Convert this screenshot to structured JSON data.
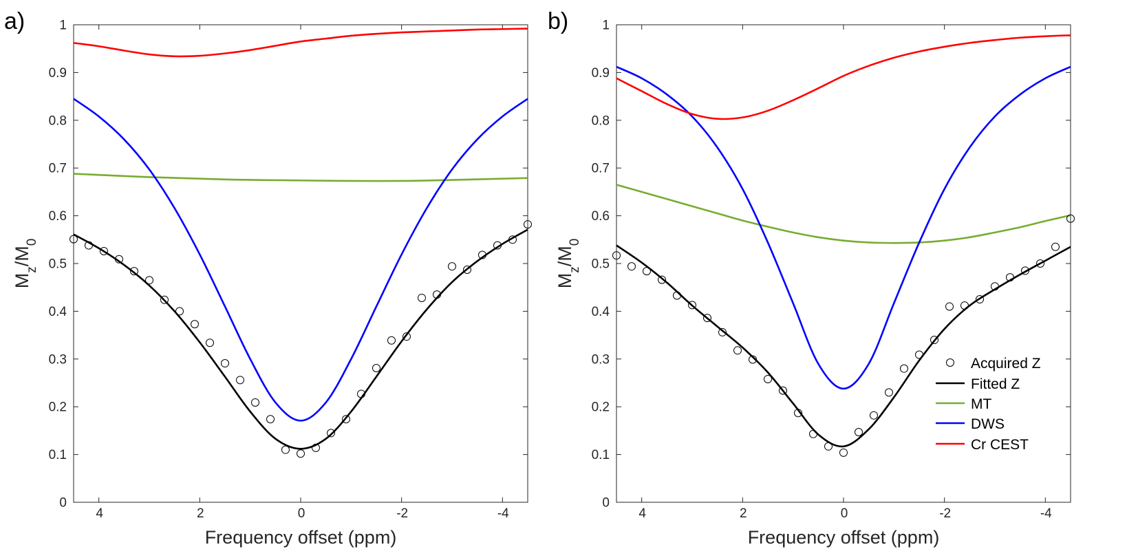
{
  "chart_data": [
    {
      "type": "line",
      "panel_label": "a)",
      "xlabel": "Frequency offset (ppm)",
      "ylabel_main": "M",
      "ylabel_sub1": "z",
      "ylabel_mid": "/M",
      "ylabel_sub2": "0",
      "xlim": [
        4.5,
        -4.5
      ],
      "ylim": [
        0,
        1
      ],
      "xticks": [
        4,
        2,
        0,
        -2,
        -4
      ],
      "xtick_labels": [
        "4",
        "2",
        "0",
        "-2",
        "-4"
      ],
      "yticks": [
        0,
        0.1,
        0.2,
        0.3,
        0.4,
        0.5,
        0.6,
        0.7,
        0.8,
        0.9,
        1
      ],
      "ytick_labels": [
        "0",
        "0.1",
        "0.2",
        "0.3",
        "0.4",
        "0.5",
        "0.6",
        "0.7",
        "0.8",
        "0.9",
        "1"
      ],
      "series": [
        {
          "name": "Acquired Z",
          "style": "markers",
          "color": "#000000",
          "x": [
            4.5,
            4.2,
            3.9,
            3.6,
            3.3,
            3.0,
            2.7,
            2.4,
            2.1,
            1.8,
            1.5,
            1.2,
            0.9,
            0.6,
            0.3,
            0.0,
            -0.3,
            -0.6,
            -0.9,
            -1.2,
            -1.5,
            -1.8,
            -2.1,
            -2.4,
            -2.7,
            -3.0,
            -3.3,
            -3.6,
            -3.9,
            -4.2,
            -4.5
          ],
          "y": [
            0.551,
            0.538,
            0.526,
            0.509,
            0.484,
            0.465,
            0.424,
            0.4,
            0.373,
            0.334,
            0.291,
            0.256,
            0.209,
            0.174,
            0.11,
            0.102,
            0.114,
            0.145,
            0.174,
            0.227,
            0.281,
            0.339,
            0.347,
            0.428,
            0.435,
            0.494,
            0.487,
            0.518,
            0.538,
            0.55,
            0.582
          ]
        },
        {
          "name": "Fitted Z",
          "style": "line",
          "color": "#000000",
          "x": [
            4.5,
            4.0,
            3.5,
            3.0,
            2.5,
            2.0,
            1.5,
            1.0,
            0.5,
            0.0,
            -0.5,
            -1.0,
            -1.5,
            -2.0,
            -2.5,
            -3.0,
            -3.5,
            -4.0,
            -4.5
          ],
          "y": [
            0.561,
            0.532,
            0.497,
            0.454,
            0.4,
            0.335,
            0.263,
            0.19,
            0.133,
            0.112,
            0.133,
            0.19,
            0.263,
            0.337,
            0.404,
            0.461,
            0.505,
            0.541,
            0.571
          ]
        },
        {
          "name": "MT",
          "style": "line",
          "color": "#77ac30",
          "x": [
            4.5,
            3.0,
            1.5,
            0.0,
            -1.0,
            -2.0,
            -3.0,
            -4.5
          ],
          "y": [
            0.688,
            0.681,
            0.676,
            0.674,
            0.673,
            0.673,
            0.675,
            0.679
          ]
        },
        {
          "name": "DWS",
          "style": "line",
          "color": "#0000ff",
          "x": [
            4.5,
            4.0,
            3.5,
            3.0,
            2.5,
            2.0,
            1.5,
            1.0,
            0.5,
            0.0,
            -0.5,
            -1.0,
            -1.5,
            -2.0,
            -2.5,
            -3.0,
            -3.5,
            -4.0,
            -4.5
          ],
          "y": [
            0.845,
            0.808,
            0.76,
            0.697,
            0.616,
            0.519,
            0.41,
            0.3,
            0.209,
            0.171,
            0.209,
            0.3,
            0.41,
            0.519,
            0.616,
            0.697,
            0.76,
            0.808,
            0.845
          ]
        },
        {
          "name": "Cr CEST",
          "style": "line",
          "color": "#ff0000",
          "x": [
            4.5,
            4.0,
            3.5,
            3.0,
            2.5,
            2.0,
            1.5,
            1.0,
            0.5,
            0.0,
            -0.5,
            -1.0,
            -1.5,
            -2.0,
            -2.5,
            -3.0,
            -3.5,
            -4.0,
            -4.5
          ],
          "y": [
            0.962,
            0.955,
            0.946,
            0.938,
            0.934,
            0.935,
            0.94,
            0.947,
            0.956,
            0.965,
            0.971,
            0.977,
            0.981,
            0.984,
            0.986,
            0.988,
            0.99,
            0.991,
            0.992
          ]
        }
      ]
    },
    {
      "type": "line",
      "panel_label": "b)",
      "xlabel": "Frequency offset (ppm)",
      "ylabel_main": "M",
      "ylabel_sub1": "z",
      "ylabel_mid": "/M",
      "ylabel_sub2": "0",
      "xlim": [
        4.5,
        -4.5
      ],
      "ylim": [
        0,
        1
      ],
      "xticks": [
        4,
        2,
        0,
        -2,
        -4
      ],
      "xtick_labels": [
        "4",
        "2",
        "0",
        "-2",
        "-4"
      ],
      "yticks": [
        0,
        0.1,
        0.2,
        0.3,
        0.4,
        0.5,
        0.6,
        0.7,
        0.8,
        0.9,
        1
      ],
      "ytick_labels": [
        "0",
        "0.1",
        "0.2",
        "0.3",
        "0.4",
        "0.5",
        "0.6",
        "0.7",
        "0.8",
        "0.9",
        "1"
      ],
      "legend_position": "bottom-right",
      "series": [
        {
          "name": "Acquired Z",
          "style": "markers",
          "color": "#000000",
          "x": [
            4.5,
            4.2,
            3.9,
            3.6,
            3.3,
            3.0,
            2.7,
            2.4,
            2.1,
            1.8,
            1.5,
            1.2,
            0.9,
            0.6,
            0.3,
            0.0,
            -0.3,
            -0.6,
            -0.9,
            -1.2,
            -1.5,
            -1.8,
            -2.1,
            -2.4,
            -2.7,
            -3.0,
            -3.3,
            -3.6,
            -3.9,
            -4.2,
            -4.5
          ],
          "y": [
            0.517,
            0.494,
            0.484,
            0.466,
            0.433,
            0.413,
            0.386,
            0.356,
            0.318,
            0.299,
            0.258,
            0.234,
            0.187,
            0.143,
            0.117,
            0.104,
            0.147,
            0.182,
            0.23,
            0.28,
            0.309,
            0.34,
            0.41,
            0.412,
            0.425,
            0.452,
            0.471,
            0.485,
            0.5,
            0.535,
            0.594
          ]
        },
        {
          "name": "Fitted Z",
          "style": "line",
          "color": "#000000",
          "x": [
            4.5,
            4.0,
            3.5,
            3.0,
            2.5,
            2.0,
            1.5,
            1.0,
            0.5,
            0.0,
            -0.5,
            -1.0,
            -1.5,
            -2.0,
            -2.5,
            -3.0,
            -3.5,
            -4.0,
            -4.5
          ],
          "y": [
            0.538,
            0.502,
            0.46,
            0.412,
            0.368,
            0.324,
            0.272,
            0.207,
            0.142,
            0.117,
            0.153,
            0.22,
            0.297,
            0.363,
            0.412,
            0.446,
            0.477,
            0.506,
            0.535
          ]
        },
        {
          "name": "MT",
          "style": "line",
          "color": "#77ac30",
          "x": [
            4.5,
            4.0,
            3.5,
            3.0,
            2.5,
            2.0,
            1.5,
            1.0,
            0.5,
            0.0,
            -0.5,
            -1.0,
            -1.5,
            -2.0,
            -2.5,
            -3.0,
            -3.5,
            -4.0,
            -4.5
          ],
          "y": [
            0.665,
            0.65,
            0.635,
            0.62,
            0.605,
            0.59,
            0.577,
            0.565,
            0.555,
            0.548,
            0.544,
            0.543,
            0.544,
            0.548,
            0.555,
            0.565,
            0.576,
            0.589,
            0.601
          ]
        },
        {
          "name": "DWS",
          "style": "line",
          "color": "#0000ff",
          "x": [
            4.5,
            4.0,
            3.5,
            3.0,
            2.5,
            2.0,
            1.5,
            1.0,
            0.5,
            0.0,
            -0.5,
            -1.0,
            -1.5,
            -2.0,
            -2.5,
            -3.0,
            -3.5,
            -4.0,
            -4.5
          ],
          "y": [
            0.912,
            0.888,
            0.854,
            0.808,
            0.743,
            0.656,
            0.544,
            0.417,
            0.29,
            0.238,
            0.29,
            0.417,
            0.544,
            0.656,
            0.743,
            0.808,
            0.854,
            0.888,
            0.912
          ]
        },
        {
          "name": "Cr CEST",
          "style": "line",
          "color": "#ff0000",
          "x": [
            4.5,
            4.0,
            3.5,
            3.0,
            2.5,
            2.0,
            1.5,
            1.0,
            0.5,
            0.0,
            -0.5,
            -1.0,
            -1.5,
            -2.0,
            -2.5,
            -3.0,
            -3.5,
            -4.0,
            -4.5
          ],
          "y": [
            0.888,
            0.861,
            0.834,
            0.813,
            0.803,
            0.806,
            0.82,
            0.842,
            0.867,
            0.893,
            0.914,
            0.931,
            0.944,
            0.954,
            0.962,
            0.968,
            0.973,
            0.976,
            0.978
          ]
        }
      ]
    }
  ]
}
